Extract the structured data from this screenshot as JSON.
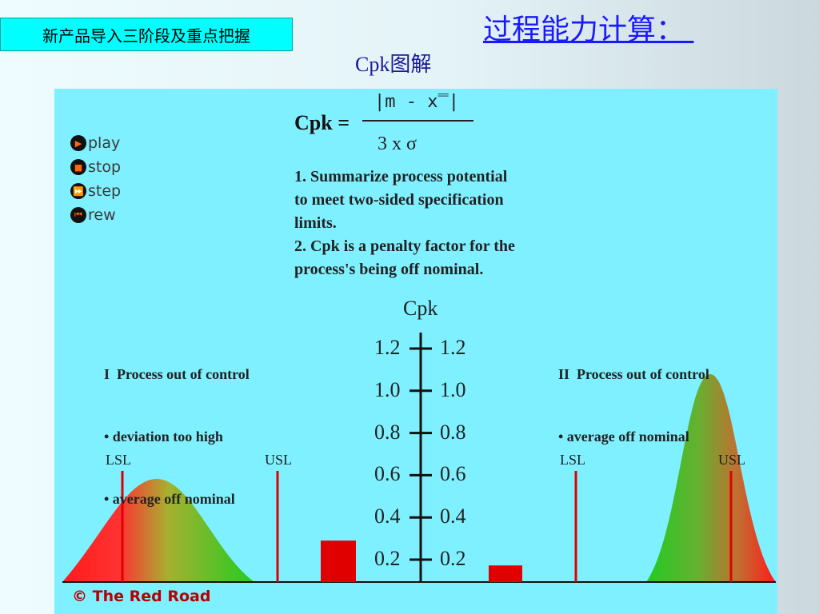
{
  "header": {
    "tag_label": "新产品导入三阶段及重点把握",
    "title": "过程能力计算： ",
    "subtitle": "Cpk图解"
  },
  "formula": {
    "label": "Cpk =",
    "numerator": "|m - x̿|",
    "denominator": "3 x σ"
  },
  "description": [
    "1. Summarize process potential",
    "to meet two-sided specification",
    "limits.",
    "2. Cpk is a penalty factor for the",
    "process's being off nominal."
  ],
  "controls": [
    {
      "label": "play",
      "icon": "play-icon",
      "glyph": "▶"
    },
    {
      "label": "stop",
      "icon": "stop-icon",
      "glyph": "■"
    },
    {
      "label": "step",
      "icon": "step-icon",
      "glyph": "⏩"
    },
    {
      "label": "rew",
      "icon": "rewind-icon",
      "glyph": "⏮"
    }
  ],
  "case_left": {
    "title": "I  Process out of control",
    "bullets": [
      "• deviation too high",
      "• average off nominal"
    ],
    "lsl": "LSL",
    "usl": "USL"
  },
  "case_right": {
    "title": "II  Process out of control",
    "bullets": [
      "• average off nominal"
    ],
    "lsl": "LSL",
    "usl": "USL"
  },
  "chart_data": {
    "type": "bar",
    "ylabel": "Cpk",
    "ticks": [
      1.2,
      1.0,
      0.8,
      0.6,
      0.4,
      0.2
    ],
    "tick_labels": [
      "1.2",
      "1.0",
      "0.8",
      "0.6",
      "0.4",
      "0.2"
    ],
    "categories": [
      "I",
      "II"
    ],
    "values": [
      0.2,
      0.08
    ],
    "ylim": [
      0,
      1.3
    ]
  },
  "footer": {
    "copyright": "© The Red Road"
  },
  "colors": {
    "panel": "#7ff0ff",
    "spec_line": "#e00000",
    "bar": "#e00000",
    "curve_red": "#ff1a1a",
    "curve_green": "#22cc22",
    "title": "#1a1aff"
  }
}
